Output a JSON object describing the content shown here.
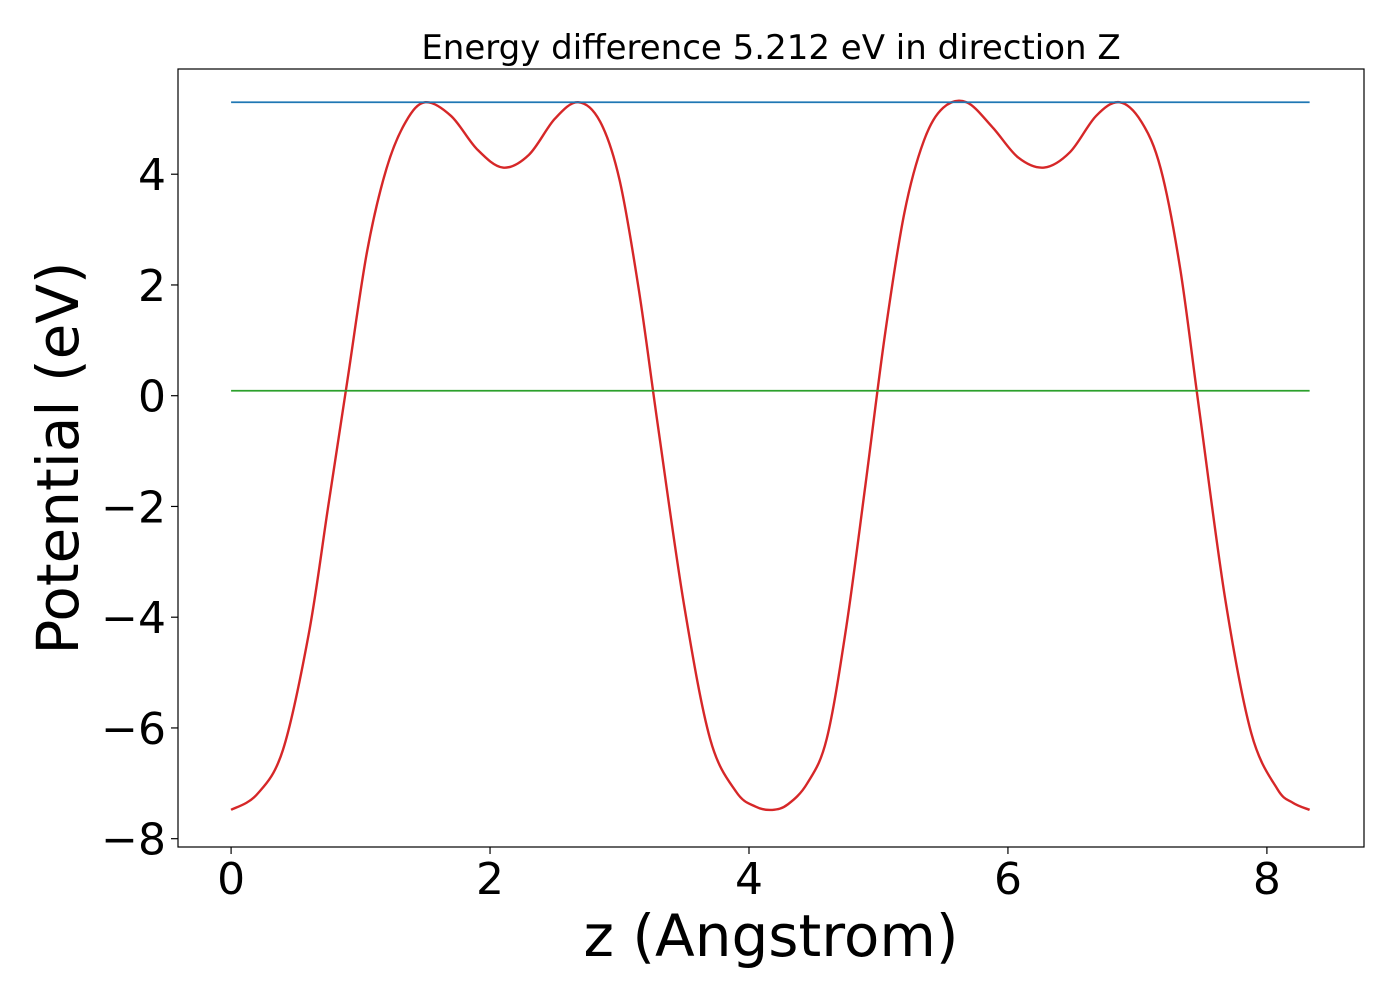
{
  "chart_data": {
    "type": "line",
    "title": "Energy difference 5.212 eV in direction Z",
    "xlabel": "z (Angstrom)",
    "ylabel": "Potential (eV)",
    "xlim": [
      -0.41,
      8.75
    ],
    "ylim": [
      -8.15,
      5.9
    ],
    "xticks": [
      0,
      2,
      4,
      6,
      8
    ],
    "xtick_labels": [
      "0",
      "2",
      "4",
      "6",
      "8"
    ],
    "yticks": [
      -8,
      -6,
      -4,
      -2,
      0,
      2,
      4
    ],
    "ytick_labels": [
      "−8",
      "−6",
      "−4",
      "−2",
      "0",
      "2",
      "4"
    ],
    "grid": false,
    "legend": "none",
    "series": [
      {
        "color": "#d62728",
        "x": [
          0,
          0.2,
          0.4,
          0.6,
          0.75,
          0.9,
          1.05,
          1.2,
          1.35,
          1.5,
          1.7,
          1.9,
          2.1,
          2.3,
          2.5,
          2.68,
          2.85,
          3.0,
          3.15,
          3.3,
          3.5,
          3.7,
          3.9,
          4.05,
          4.18,
          4.3,
          4.45,
          4.6,
          4.75,
          4.9,
          5.05,
          5.2,
          5.35,
          5.5,
          5.68,
          5.88,
          6.08,
          6.28,
          6.48,
          6.68,
          6.86,
          7.03,
          7.18,
          7.33,
          7.48,
          7.68,
          7.88,
          8.08,
          8.2,
          8.33
        ],
        "y": [
          -7.48,
          -7.2,
          -6.4,
          -4.3,
          -2.0,
          0.3,
          2.6,
          4.1,
          4.95,
          5.3,
          5.05,
          4.45,
          4.12,
          4.35,
          5.0,
          5.3,
          4.95,
          3.9,
          1.9,
          -0.6,
          -3.8,
          -6.2,
          -7.15,
          -7.42,
          -7.48,
          -7.38,
          -7.0,
          -6.2,
          -4.2,
          -1.6,
          1.1,
          3.3,
          4.6,
          5.2,
          5.3,
          4.85,
          4.3,
          4.12,
          4.4,
          5.05,
          5.3,
          4.95,
          4.1,
          2.3,
          -0.3,
          -3.7,
          -6.1,
          -7.1,
          -7.35,
          -7.48
        ]
      },
      {
        "color": "#1f77b4",
        "x": [
          0,
          8.33
        ],
        "y": [
          5.3,
          5.3
        ]
      },
      {
        "color": "#2ca02c",
        "x": [
          0,
          8.33
        ],
        "y": [
          0.09,
          0.09
        ]
      }
    ]
  }
}
